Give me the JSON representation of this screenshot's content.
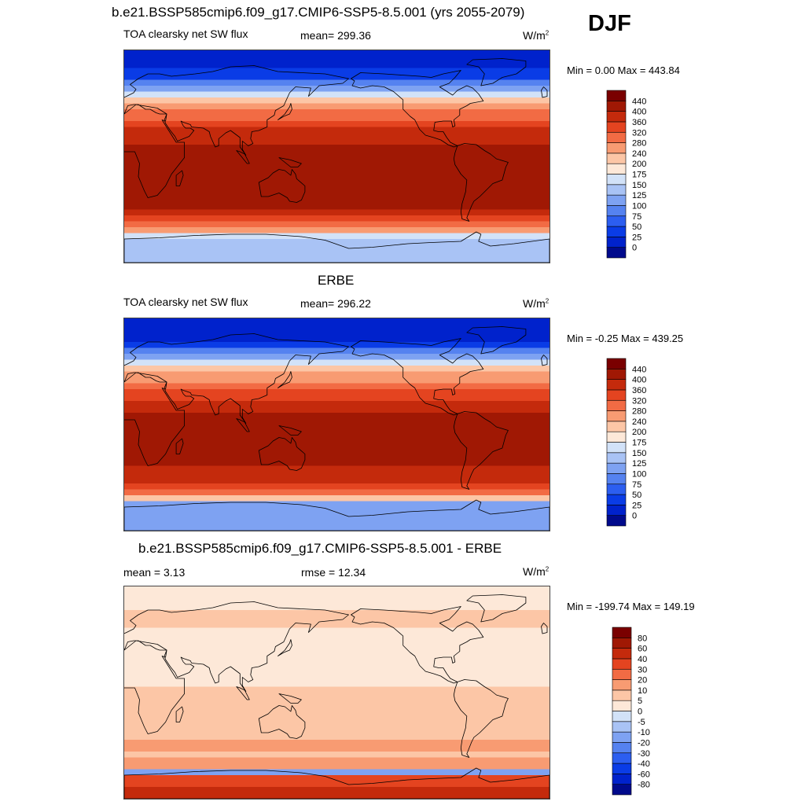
{
  "header": {
    "title": "b.e21.BSSP585cmip6.f09_g17.CMIP6-SSP5-8.5.001 (yrs 2055-2079)",
    "season": "DJF"
  },
  "panels": [
    {
      "id": "model",
      "heading": "",
      "left_label": "TOA clearsky net SW flux",
      "center_label": "mean= 299.36",
      "units": "W/m",
      "units_sup": "2",
      "minmax": "Min =   0.00 Max = 443.84"
    },
    {
      "id": "obs",
      "heading": "ERBE",
      "left_label": "TOA clearsky net SW flux",
      "center_label": "mean= 296.22",
      "units": "W/m",
      "units_sup": "2",
      "minmax": "Min =  -0.25 Max = 439.25"
    },
    {
      "id": "diff",
      "heading": "b.e21.BSSP585cmip6.f09_g17.CMIP6-SSP5-8.5.001 - ERBE",
      "left_label": "mean =   3.13",
      "center_label": "rmse =  12.34",
      "units": "W/m",
      "units_sup": "2",
      "minmax": "Min = -199.74 Max = 149.19"
    }
  ],
  "chart_data": [
    {
      "type": "heatmap",
      "name": "model",
      "colorbar_levels": [
        "0",
        "25",
        "50",
        "75",
        "100",
        "125",
        "150",
        "175",
        "200",
        "240",
        "280",
        "320",
        "360",
        "400",
        "440"
      ],
      "colorbar_colors": [
        "#000a8c",
        "#0022cc",
        "#0a3ce6",
        "#2c5ef0",
        "#5582f0",
        "#7ea2f2",
        "#a9c3f5",
        "#d2e2f8",
        "#fde8d8",
        "#fcc6a6",
        "#f89b72",
        "#f26b44",
        "#e44420",
        "#c42a0c",
        "#a01804",
        "#7a0000"
      ],
      "data_range": [
        0.0,
        443.84
      ],
      "mean": 299.36,
      "projection": "Pacific-centered global map, longitude 0..360, latitude -90..90",
      "zonal_profile": [
        {
          "lat": 90,
          "value": 0
        },
        {
          "lat": 75,
          "value": 15
        },
        {
          "lat": 65,
          "value": 60
        },
        {
          "lat": 55,
          "value": 140
        },
        {
          "lat": 45,
          "value": 230
        },
        {
          "lat": 35,
          "value": 300
        },
        {
          "lat": 25,
          "value": 350
        },
        {
          "lat": 15,
          "value": 390
        },
        {
          "lat": 5,
          "value": 410
        },
        {
          "lat": -5,
          "value": 425
        },
        {
          "lat": -15,
          "value": 440
        },
        {
          "lat": -25,
          "value": 435
        },
        {
          "lat": -35,
          "value": 420
        },
        {
          "lat": -45,
          "value": 395
        },
        {
          "lat": -55,
          "value": 340
        },
        {
          "lat": -62,
          "value": 260
        },
        {
          "lat": -68,
          "value": 150
        },
        {
          "lat": -78,
          "value": 140
        },
        {
          "lat": -90,
          "value": 150
        }
      ]
    },
    {
      "type": "heatmap",
      "name": "obs",
      "colorbar_levels": [
        "0",
        "25",
        "50",
        "75",
        "100",
        "125",
        "150",
        "175",
        "200",
        "240",
        "280",
        "320",
        "360",
        "400",
        "440"
      ],
      "colorbar_colors": [
        "#000a8c",
        "#0022cc",
        "#0a3ce6",
        "#2c5ef0",
        "#5582f0",
        "#7ea2f2",
        "#a9c3f5",
        "#d2e2f8",
        "#fde8d8",
        "#fcc6a6",
        "#f89b72",
        "#f26b44",
        "#e44420",
        "#c42a0c",
        "#a01804",
        "#7a0000"
      ],
      "data_range": [
        -0.25,
        439.25
      ],
      "mean": 296.22,
      "projection": "Pacific-centered global map, longitude 0..360, latitude -90..90",
      "zonal_profile": [
        {
          "lat": 90,
          "value": 0
        },
        {
          "lat": 75,
          "value": 10
        },
        {
          "lat": 65,
          "value": 55
        },
        {
          "lat": 55,
          "value": 135
        },
        {
          "lat": 45,
          "value": 225
        },
        {
          "lat": 35,
          "value": 295
        },
        {
          "lat": 25,
          "value": 345
        },
        {
          "lat": 15,
          "value": 385
        },
        {
          "lat": 5,
          "value": 405
        },
        {
          "lat": -5,
          "value": 410
        },
        {
          "lat": -15,
          "value": 415
        },
        {
          "lat": -25,
          "value": 410
        },
        {
          "lat": -35,
          "value": 405
        },
        {
          "lat": -45,
          "value": 380
        },
        {
          "lat": -55,
          "value": 330
        },
        {
          "lat": -62,
          "value": 240
        },
        {
          "lat": -68,
          "value": 110
        },
        {
          "lat": -78,
          "value": 100
        },
        {
          "lat": -90,
          "value": 100
        }
      ]
    },
    {
      "type": "heatmap",
      "name": "diff",
      "colorbar_levels": [
        "-80",
        "-60",
        "-40",
        "-30",
        "-20",
        "-10",
        "-5",
        "0",
        "5",
        "10",
        "20",
        "30",
        "40",
        "60",
        "80"
      ],
      "colorbar_colors": [
        "#000a8c",
        "#0022cc",
        "#0a3ce6",
        "#2c5ef0",
        "#5582f0",
        "#7ea2f2",
        "#a9c3f5",
        "#d2e2f8",
        "#fde8d8",
        "#fcc6a6",
        "#f89b72",
        "#f26b44",
        "#e44420",
        "#c42a0c",
        "#a01804",
        "#7a0000"
      ],
      "data_range": [
        -199.74,
        149.19
      ],
      "mean": 3.13,
      "rmse": 12.34,
      "projection": "Pacific-centered global map, longitude 0..360, latitude -90..90",
      "zonal_profile": [
        {
          "lat": 90,
          "value": 1
        },
        {
          "lat": 75,
          "value": 3
        },
        {
          "lat": 65,
          "value": 8
        },
        {
          "lat": 55,
          "value": 4
        },
        {
          "lat": 45,
          "value": 3
        },
        {
          "lat": 35,
          "value": 3
        },
        {
          "lat": 25,
          "value": 3
        },
        {
          "lat": 15,
          "value": 3
        },
        {
          "lat": 5,
          "value": 4
        },
        {
          "lat": -5,
          "value": 8
        },
        {
          "lat": -15,
          "value": 10
        },
        {
          "lat": -25,
          "value": 9
        },
        {
          "lat": -35,
          "value": 8
        },
        {
          "lat": -45,
          "value": 12
        },
        {
          "lat": -55,
          "value": 9
        },
        {
          "lat": -62,
          "value": 18
        },
        {
          "lat": -66,
          "value": -45
        },
        {
          "lat": -70,
          "value": 30
        },
        {
          "lat": -78,
          "value": 40
        },
        {
          "lat": -90,
          "value": 45
        }
      ]
    }
  ]
}
